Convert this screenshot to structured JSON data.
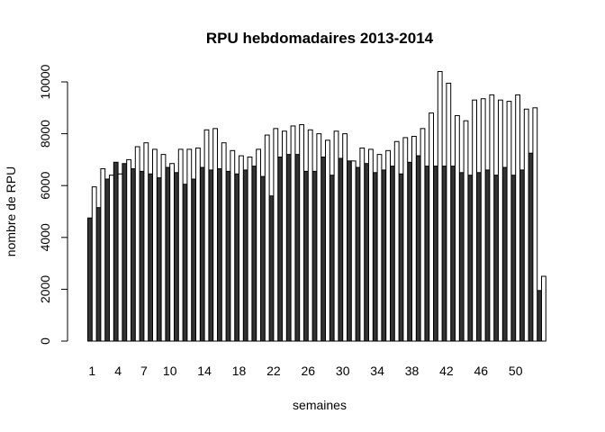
{
  "chart_data": {
    "type": "bar",
    "title": "RPU hebdomadaires 2013-2014",
    "xlabel": "semaines",
    "ylabel": "nombre de RPU",
    "ylim": [
      0,
      10000
    ],
    "yticks": [
      0,
      2000,
      4000,
      6000,
      8000,
      10000
    ],
    "xtick_labels": [
      "1",
      "4",
      "7",
      "10",
      "14",
      "18",
      "22",
      "26",
      "30",
      "34",
      "38",
      "42",
      "46",
      "50"
    ],
    "xtick_weeks": [
      1,
      4,
      7,
      10,
      14,
      18,
      22,
      26,
      30,
      34,
      38,
      42,
      46,
      50
    ],
    "grid": false,
    "legend": "none",
    "series_colors": [
      "#333333",
      "#ffffff"
    ],
    "categories": [
      1,
      2,
      3,
      4,
      5,
      6,
      7,
      8,
      9,
      10,
      11,
      12,
      13,
      14,
      15,
      16,
      17,
      18,
      19,
      20,
      21,
      22,
      23,
      24,
      25,
      26,
      27,
      28,
      29,
      30,
      31,
      32,
      33,
      34,
      35,
      36,
      37,
      38,
      39,
      40,
      41,
      42,
      43,
      44,
      45,
      46,
      47,
      48,
      49,
      50,
      51,
      52,
      53
    ],
    "series": [
      {
        "values": [
          4750,
          5150,
          6250,
          6900,
          6850,
          6650,
          6550,
          6450,
          6300,
          6700,
          6500,
          6050,
          6250,
          6700,
          6600,
          6650,
          6550,
          6450,
          6600,
          6750,
          6350,
          5600,
          7100,
          7200,
          7200,
          6550,
          6550,
          7100,
          6400,
          7050,
          6950,
          6700,
          6850,
          6500,
          6600,
          6750,
          6450,
          6900,
          7150,
          6750,
          6750,
          6750,
          6750,
          6500,
          6400,
          6500,
          6600,
          6400,
          6700,
          6400,
          6600,
          7250,
          1950
        ]
      },
      {
        "values": [
          5950,
          6650,
          6400,
          6450,
          7000,
          7500,
          7650,
          7400,
          7200,
          6850,
          7400,
          7400,
          7450,
          8150,
          8200,
          7650,
          7350,
          7150,
          7100,
          7400,
          7950,
          8200,
          8100,
          8300,
          8350,
          8150,
          8000,
          7750,
          8100,
          8000,
          6950,
          7450,
          7400,
          7200,
          7350,
          7700,
          7850,
          7900,
          8200,
          8800,
          10400,
          9950,
          8700,
          8500,
          9300,
          9350,
          9500,
          9300,
          9250,
          9500,
          8950,
          9000,
          2500
        ]
      }
    ]
  }
}
